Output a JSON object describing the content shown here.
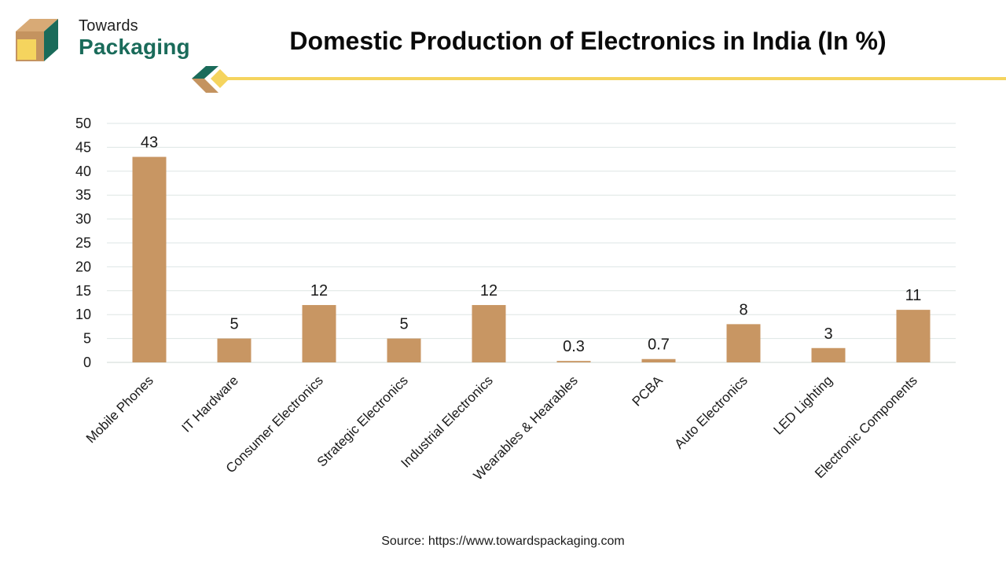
{
  "brand": {
    "line1": "Towards",
    "line2": "Packaging",
    "colors": {
      "green": "#1a6b5a",
      "tan": "#c4935f",
      "yellow": "#f5d45e"
    }
  },
  "header": {
    "title": "Domestic Production of Electronics in India (In %)",
    "accent_color": "#f5d45e"
  },
  "chart_data": {
    "type": "bar",
    "title": "Domestic Production of Electronics in India (In %)",
    "xlabel": "",
    "ylabel": "",
    "categories": [
      "Mobile Phones",
      "IT Hardware",
      "Consumer Electronics",
      "Strategic Electronics",
      "Industrial Electronics",
      "Wearables & Hearables",
      "PCBA",
      "Auto Electronics",
      "LED Lighting",
      "Electronic Components"
    ],
    "values": [
      43,
      5,
      12,
      5,
      12,
      0.3,
      0.7,
      8,
      3,
      11
    ],
    "data_labels": [
      "43",
      "5",
      "12",
      "5",
      "12",
      "0.3",
      "0.7",
      "8",
      "3",
      "11"
    ],
    "ylim": [
      0,
      50
    ],
    "yticks": [
      0,
      5,
      10,
      15,
      20,
      25,
      30,
      35,
      40,
      45,
      50
    ],
    "grid": true,
    "legend": "none",
    "bar_color": "#c89663"
  },
  "footer": {
    "source": "Source: https://www.towardspackaging.com"
  }
}
